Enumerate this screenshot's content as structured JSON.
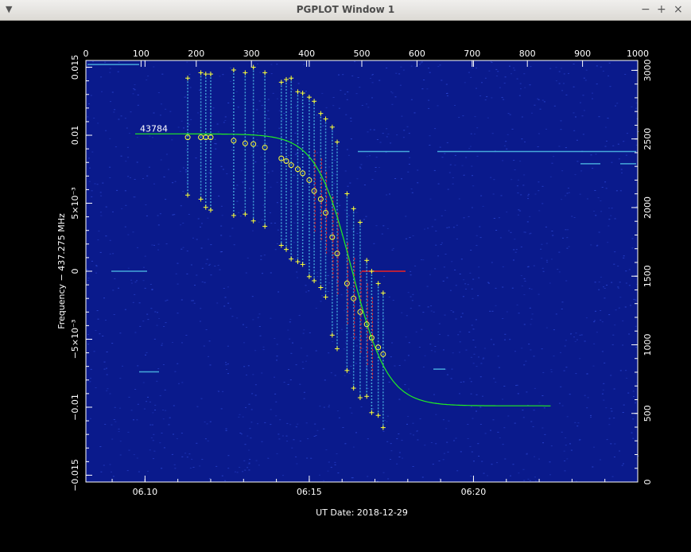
{
  "window": {
    "title": "PGPLOT Window 1",
    "menu_icon": "chevron-down-icon",
    "min_icon": "minimize-icon",
    "max_icon": "maximize-icon",
    "close_icon": "close-icon",
    "menu_glyph": "▼",
    "min_glyph": "−",
    "max_glyph": "+",
    "close_glyph": "×"
  },
  "colors": {
    "background": "#0a1a8c",
    "noise": "#2a45d0",
    "curve": "#22ee22",
    "markers": "#ffff33",
    "streak_cyan": "#55ccee",
    "streak_red": "#ee2222"
  },
  "chart_data": {
    "type": "scatter",
    "xlabel": "UT Date: 2018-12-29",
    "ylabel": "Frequency − 437.275 MHz",
    "x_ticks": [
      {
        "label": "06.10",
        "minute": 10
      },
      {
        "label": "06:15",
        "minute": 15
      },
      {
        "label": "06:20",
        "minute": 20
      }
    ],
    "y_ticks": [
      {
        "label": "0.015",
        "value": 0.015
      },
      {
        "label": "0.01",
        "value": 0.01
      },
      {
        "label": "5×10⁻³",
        "value": 0.005
      },
      {
        "label": "0",
        "value": 0
      },
      {
        "label": "−5×10⁻³",
        "value": -0.005
      },
      {
        "label": "−0.01",
        "value": -0.01
      },
      {
        "label": "−0.015",
        "value": -0.015
      }
    ],
    "top_axis": {
      "range": [
        0,
        1000
      ],
      "ticks": [
        "0",
        "100",
        "200",
        "300",
        "400",
        "500",
        "600",
        "700",
        "800",
        "900",
        "1000"
      ]
    },
    "right_axis": {
      "range": [
        0,
        3072
      ],
      "ticks": [
        "0",
        "500",
        "1000",
        "1500",
        "2000",
        "2500",
        "3000"
      ]
    },
    "xlim_minutes": [
      8.2,
      25.0
    ],
    "ylim": [
      -0.0155,
      0.0155
    ],
    "curve_label": "43784",
    "fit_curve": {
      "f_high": 0.0101,
      "f_low": -0.0099,
      "t_center_minutes": 16.3,
      "width_minutes": 1.2,
      "t_start_minutes": 9.7,
      "t_end_minutes": 22.4
    },
    "points": [
      {
        "t": 11.3,
        "f": 0.00985,
        "plus_hi": 0.0142,
        "plus_lo": 0.0056
      },
      {
        "t": 11.7,
        "f": 0.00985,
        "plus_hi": 0.0146,
        "plus_lo": 0.0053
      },
      {
        "t": 11.85,
        "f": 0.00985,
        "plus_hi": 0.0145,
        "plus_lo": 0.0047
      },
      {
        "t": 12.0,
        "f": 0.00985,
        "plus_hi": 0.0145,
        "plus_lo": 0.0045
      },
      {
        "t": 12.7,
        "f": 0.0096,
        "plus_hi": 0.0148,
        "plus_lo": 0.0041
      },
      {
        "t": 13.05,
        "f": 0.0094,
        "plus_hi": 0.0146,
        "plus_lo": 0.0042
      },
      {
        "t": 13.3,
        "f": 0.00935,
        "plus_hi": 0.015,
        "plus_lo": 0.0037
      },
      {
        "t": 13.65,
        "f": 0.0091,
        "plus_hi": 0.0146,
        "plus_lo": 0.0033
      },
      {
        "t": 14.15,
        "f": 0.0083,
        "plus_hi": 0.0139,
        "plus_lo": 0.0019
      },
      {
        "t": 14.3,
        "f": 0.0081,
        "plus_hi": 0.0141,
        "plus_lo": 0.0016
      },
      {
        "t": 14.45,
        "f": 0.0078,
        "plus_hi": 0.0142,
        "plus_lo": 0.0009
      },
      {
        "t": 14.65,
        "f": 0.0075,
        "plus_hi": 0.0132,
        "plus_lo": 0.0007
      },
      {
        "t": 14.8,
        "f": 0.0072,
        "plus_hi": 0.0131,
        "plus_lo": 0.0005
      },
      {
        "t": 15.0,
        "f": 0.0067,
        "plus_hi": 0.0128,
        "plus_lo": -0.0004
      },
      {
        "t": 15.15,
        "f": 0.0059,
        "plus_hi": 0.0125,
        "plus_lo": -0.0007
      },
      {
        "t": 15.35,
        "f": 0.0053,
        "plus_hi": 0.0116,
        "plus_lo": -0.0012
      },
      {
        "t": 15.5,
        "f": 0.0043,
        "plus_hi": 0.0112,
        "plus_lo": -0.0019
      },
      {
        "t": 15.7,
        "f": 0.0025,
        "plus_hi": 0.0106,
        "plus_lo": -0.0047
      },
      {
        "t": 15.85,
        "f": 0.0013,
        "plus_hi": 0.0095,
        "plus_lo": -0.0057
      },
      {
        "t": 16.15,
        "f": -0.0009,
        "plus_hi": 0.0057,
        "plus_lo": -0.0073
      },
      {
        "t": 16.35,
        "f": -0.002,
        "plus_hi": 0.0046,
        "plus_lo": -0.0086
      },
      {
        "t": 16.55,
        "f": -0.003,
        "plus_hi": 0.0036,
        "plus_lo": -0.0093
      },
      {
        "t": 16.75,
        "f": -0.0039,
        "plus_hi": 0.0008,
        "plus_lo": -0.0092
      },
      {
        "t": 16.9,
        "f": -0.0049,
        "plus_hi": 0.0,
        "plus_lo": -0.0104
      },
      {
        "t": 17.1,
        "f": -0.0056,
        "plus_hi": -0.0009,
        "plus_lo": -0.0106
      },
      {
        "t": 17.25,
        "f": -0.0061,
        "plus_hi": -0.0016,
        "plus_lo": -0.0115
      }
    ]
  }
}
